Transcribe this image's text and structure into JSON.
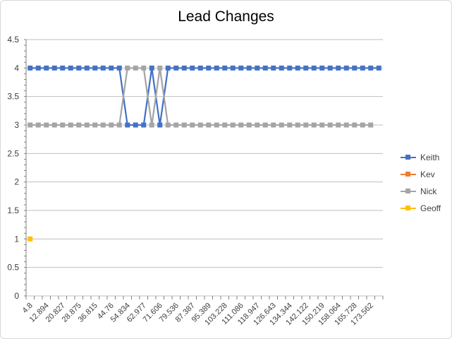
{
  "chart_data": {
    "type": "line",
    "title": "Lead Changes",
    "xlabel": "",
    "ylabel": "",
    "ylim": [
      0,
      4.5
    ],
    "yticks": [
      "0",
      "0.5",
      "1",
      "1.5",
      "2",
      "2.5",
      "3",
      "3.5",
      "4",
      "4.5"
    ],
    "xtick_labels": [
      "4.8",
      "12.894",
      "20.827",
      "28.875",
      "36.815",
      "44.76",
      "54.834",
      "62.977",
      "71.606",
      "79.536",
      "87.387",
      "95.389",
      "103.228",
      "111.086",
      "118.947",
      "126.643",
      "134.344",
      "142.122",
      "150.219",
      "158.064",
      "165.728",
      "173.562"
    ],
    "grid": true,
    "legend_position": "right",
    "series": [
      {
        "name": "Keith",
        "color": "#4472c4",
        "values": [
          4,
          4,
          4,
          4,
          4,
          4,
          4,
          4,
          4,
          4,
          4,
          4,
          3,
          3,
          3,
          4,
          3,
          4,
          4,
          4,
          4,
          4,
          4,
          4,
          4,
          4,
          4,
          4,
          4,
          4,
          4,
          4,
          4,
          4,
          4,
          4,
          4,
          4,
          4,
          4,
          4,
          4,
          4,
          4
        ]
      },
      {
        "name": "Kev",
        "color": "#ed7d31",
        "values": []
      },
      {
        "name": "Nick",
        "color": "#a5a5a5",
        "values": [
          3,
          3,
          3,
          3,
          3,
          3,
          3,
          3,
          3,
          3,
          3,
          3,
          4,
          4,
          4,
          3,
          4,
          3,
          3,
          3,
          3,
          3,
          3,
          3,
          3,
          3,
          3,
          3,
          3,
          3,
          3,
          3,
          3,
          3,
          3,
          3,
          3,
          3,
          3,
          3,
          3,
          3,
          3
        ]
      },
      {
        "name": "Geoff",
        "color": "#ffc000",
        "values": [
          1
        ]
      }
    ]
  }
}
